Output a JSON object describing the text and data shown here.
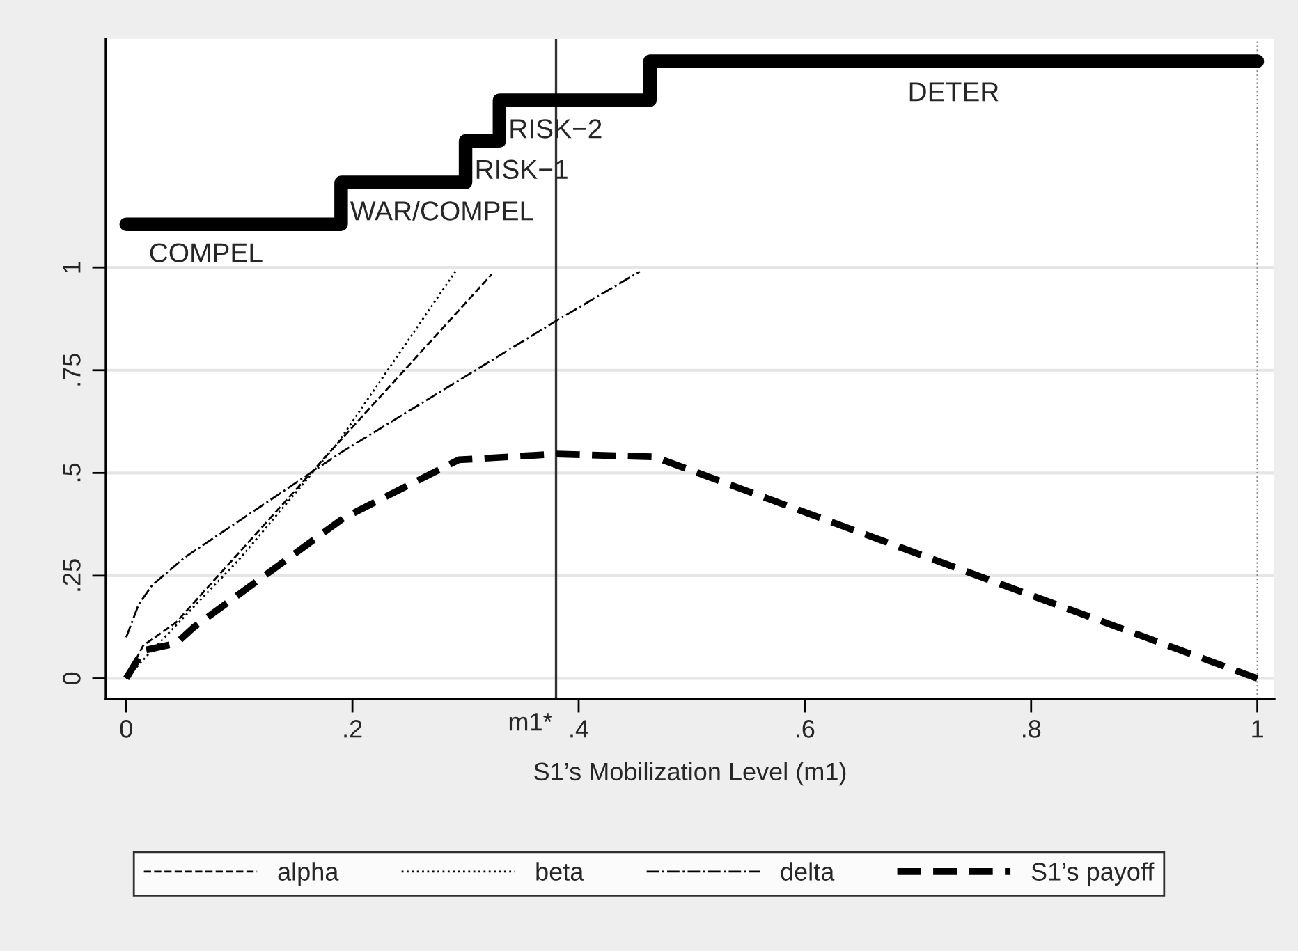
{
  "chart_data": {
    "type": "line",
    "xlabel": "S1’s Mobilization Level (m1)",
    "xlim": [
      -0.018,
      1.015
    ],
    "ylim": [
      -0.05,
      1.556
    ],
    "xticks": [
      0,
      {
        "value": 0.2,
        "label": ".2"
      },
      {
        "value": 0.4,
        "label": ".4"
      },
      {
        "value": 0.6,
        "label": ".6"
      },
      {
        "value": 0.8,
        "label": ".8"
      },
      1
    ],
    "yticks": [
      0,
      {
        "value": 0.25,
        "label": ".25"
      },
      {
        "value": 0.5,
        "label": ".5"
      },
      {
        "value": 0.75,
        "label": ".75"
      },
      1
    ],
    "grid": "y",
    "legend": "bottom",
    "series": [
      {
        "name": "alpha",
        "color": "#000000",
        "line_style": "dashed",
        "x": [
          0,
          0.015,
          0.044,
          0.183,
          0.323
        ],
        "values": [
          0,
          0.08,
          0.136,
          0.56,
          0.983
        ]
      },
      {
        "name": "beta",
        "color": "#000000",
        "line_style": "dotted",
        "x": [
          0,
          0.02,
          0.1,
          0.187,
          0.291
        ],
        "values": [
          0,
          0.06,
          0.29,
          0.573,
          0.99
        ]
      },
      {
        "name": "delta",
        "color": "#000000",
        "line_style": "dashdot",
        "x": [
          0,
          0.011,
          0.023,
          0.052,
          0.19,
          0.38,
          0.454
        ],
        "values": [
          0.1,
          0.18,
          0.227,
          0.295,
          0.55,
          0.87,
          0.99
        ]
      },
      {
        "name": "S1’s payoff",
        "color": "#000000",
        "line_style": "dashed",
        "x": [
          0,
          0.015,
          0.044,
          0.06,
          0.192,
          0.294,
          0.38,
          0.467,
          1.0
        ],
        "values": [
          0,
          0.068,
          0.085,
          0.125,
          0.39,
          0.532,
          0.546,
          0.539,
          0
        ]
      },
      {
        "type": "step",
        "color": "#000000",
        "x": [
          0,
          0.19,
          0.3,
          0.33,
          0.463,
          1.0
        ],
        "values": [
          1.105,
          1.207,
          1.308,
          1.407,
          1.502,
          1.502
        ]
      }
    ],
    "ref_lines": [
      {
        "axis": "x",
        "value": 0.38,
        "label": "m1*",
        "color": "#333333",
        "line_style": "solid"
      },
      {
        "axis": "x",
        "value": 1.0,
        "label": null,
        "color": "#888888",
        "line_style": "dotted"
      }
    ],
    "annotations": [
      "COMPEL",
      "WAR/COMPEL",
      "RISK−1",
      "RISK−2",
      "DETER"
    ]
  }
}
